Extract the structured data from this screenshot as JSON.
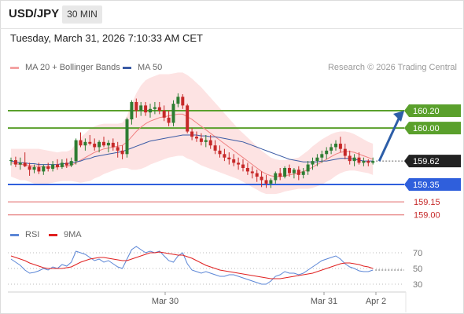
{
  "header": {
    "symbol": "USD/JPY",
    "timeframe": "30 MIN",
    "datetime": "Tuesday, March 31, 2026 7:10:33 AM CET"
  },
  "legend": {
    "ma20_bb": "MA 20 + Bollinger Bands",
    "ma50": "MA 50",
    "copyright": "Research © 2026 Trading Central",
    "rsi": "RSI",
    "ma9": "9MA"
  },
  "colors": {
    "up_candle": "#2d7d32",
    "down_candle": "#c62828",
    "bollinger_fill": "#fde3e3",
    "ma20": "#f08080",
    "ma50": "#3b5ba5",
    "resistance": "#5aa02c",
    "support": "#2f5fdc",
    "target": "#e06666",
    "arrow": "#2d5ea8",
    "rsi": "#5b86d6",
    "rsi_ma": "#e02020"
  },
  "chart_data": [
    {
      "type": "candlestick",
      "title": "",
      "x_tick_labels": [
        "Mar 30",
        "Mar 31",
        "Apr 2"
      ],
      "ylim": [
        158.95,
        160.4
      ],
      "current_price": 159.62,
      "horizontal_levels": [
        {
          "value": 160.2,
          "label": "160.20",
          "kind": "resistance"
        },
        {
          "value": 160.0,
          "label": "160.00",
          "kind": "resistance"
        },
        {
          "value": 159.35,
          "label": "159.35",
          "kind": "support"
        },
        {
          "value": 159.15,
          "label": "159.15",
          "kind": "target"
        },
        {
          "value": 159.0,
          "label": "159.00",
          "kind": "target"
        }
      ],
      "projection": {
        "from": 159.62,
        "to": 160.2
      },
      "candles_ohlc": [
        [
          159.62,
          159.66,
          159.57,
          159.63
        ],
        [
          159.63,
          159.67,
          159.55,
          159.58
        ],
        [
          159.58,
          159.66,
          159.52,
          159.6
        ],
        [
          159.6,
          159.72,
          159.55,
          159.56
        ],
        [
          159.56,
          159.6,
          159.45,
          159.52
        ],
        [
          159.52,
          159.58,
          159.48,
          159.55
        ],
        [
          159.55,
          159.6,
          159.47,
          159.5
        ],
        [
          159.5,
          159.58,
          159.46,
          159.56
        ],
        [
          159.56,
          159.6,
          159.5,
          159.53
        ],
        [
          159.53,
          159.62,
          159.5,
          159.58
        ],
        [
          159.58,
          159.64,
          159.52,
          159.55
        ],
        [
          159.55,
          159.64,
          159.53,
          159.6
        ],
        [
          159.6,
          159.65,
          159.54,
          159.57
        ],
        [
          159.57,
          159.66,
          159.55,
          159.62
        ],
        [
          159.62,
          159.88,
          159.58,
          159.86
        ],
        [
          159.86,
          159.95,
          159.78,
          159.8
        ],
        [
          159.8,
          159.88,
          159.74,
          159.84
        ],
        [
          159.84,
          159.92,
          159.8,
          159.82
        ],
        [
          159.82,
          159.88,
          159.74,
          159.78
        ],
        [
          159.78,
          159.86,
          159.72,
          159.84
        ],
        [
          159.84,
          159.9,
          159.78,
          159.8
        ],
        [
          159.8,
          159.86,
          159.72,
          159.83
        ],
        [
          159.83,
          159.88,
          159.74,
          159.78
        ],
        [
          159.78,
          159.84,
          159.66,
          159.74
        ],
        [
          159.74,
          159.8,
          159.64,
          159.7
        ],
        [
          159.7,
          160.12,
          159.66,
          160.1
        ],
        [
          160.1,
          160.32,
          160.04,
          160.3
        ],
        [
          160.3,
          160.34,
          160.12,
          160.2
        ],
        [
          160.2,
          160.3,
          160.14,
          160.26
        ],
        [
          160.26,
          160.3,
          160.14,
          160.18
        ],
        [
          160.18,
          160.28,
          160.12,
          160.22
        ],
        [
          160.22,
          160.3,
          160.16,
          160.24
        ],
        [
          160.24,
          160.3,
          160.16,
          160.2
        ],
        [
          160.2,
          160.26,
          160.08,
          160.12
        ],
        [
          160.12,
          160.2,
          160.02,
          160.06
        ],
        [
          160.06,
          160.32,
          160.02,
          160.28
        ],
        [
          160.28,
          160.4,
          160.24,
          160.36
        ],
        [
          160.36,
          160.39,
          160.22,
          160.26
        ],
        [
          160.26,
          160.28,
          159.94,
          159.96
        ],
        [
          159.96,
          160.0,
          159.86,
          159.9
        ],
        [
          159.9,
          159.96,
          159.84,
          159.88
        ],
        [
          159.88,
          159.94,
          159.8,
          159.84
        ],
        [
          159.84,
          159.92,
          159.78,
          159.86
        ],
        [
          159.86,
          159.92,
          159.76,
          159.8
        ],
        [
          159.8,
          159.86,
          159.7,
          159.74
        ],
        [
          159.74,
          159.8,
          159.66,
          159.7
        ],
        [
          159.7,
          159.76,
          159.62,
          159.66
        ],
        [
          159.66,
          159.72,
          159.58,
          159.64
        ],
        [
          159.64,
          159.7,
          159.56,
          159.6
        ],
        [
          159.6,
          159.66,
          159.52,
          159.58
        ],
        [
          159.58,
          159.64,
          159.5,
          159.54
        ],
        [
          159.54,
          159.6,
          159.46,
          159.5
        ],
        [
          159.5,
          159.56,
          159.42,
          159.48
        ],
        [
          159.48,
          159.52,
          159.38,
          159.44
        ],
        [
          159.44,
          159.5,
          159.32,
          159.4
        ],
        [
          159.4,
          159.46,
          159.31,
          159.36
        ],
        [
          159.36,
          159.42,
          159.31,
          159.4
        ],
        [
          159.4,
          159.5,
          159.36,
          159.48
        ],
        [
          159.48,
          159.54,
          159.4,
          159.44
        ],
        [
          159.44,
          159.56,
          159.42,
          159.54
        ],
        [
          159.54,
          159.58,
          159.44,
          159.48
        ],
        [
          159.48,
          159.54,
          159.42,
          159.52
        ],
        [
          159.52,
          159.56,
          159.4,
          159.46
        ],
        [
          159.46,
          159.54,
          159.42,
          159.5
        ],
        [
          159.5,
          159.62,
          159.46,
          159.58
        ],
        [
          159.58,
          159.66,
          159.52,
          159.62
        ],
        [
          159.62,
          159.7,
          159.56,
          159.66
        ],
        [
          159.66,
          159.74,
          159.6,
          159.7
        ],
        [
          159.7,
          159.78,
          159.64,
          159.74
        ],
        [
          159.74,
          159.82,
          159.7,
          159.78
        ],
        [
          159.78,
          159.86,
          159.74,
          159.82
        ],
        [
          159.82,
          159.9,
          159.72,
          159.76
        ],
        [
          159.76,
          159.82,
          159.64,
          159.68
        ],
        [
          159.68,
          159.74,
          159.58,
          159.62
        ],
        [
          159.62,
          159.7,
          159.56,
          159.66
        ],
        [
          159.66,
          159.72,
          159.58,
          159.6
        ],
        [
          159.6,
          159.66,
          159.56,
          159.62
        ],
        [
          159.62,
          159.64,
          159.56,
          159.6
        ],
        [
          159.6,
          159.66,
          159.58,
          159.62
        ]
      ],
      "ma50_values": [
        159.62,
        159.61,
        159.6,
        159.6,
        159.59,
        159.59,
        159.58,
        159.58,
        159.58,
        159.58,
        159.58,
        159.59,
        159.59,
        159.6,
        159.61,
        159.62,
        159.64,
        159.65,
        159.67,
        159.68,
        159.69,
        159.7,
        159.71,
        159.72,
        159.73,
        159.75,
        159.77,
        159.79,
        159.81,
        159.83,
        159.85,
        159.86,
        159.87,
        159.88,
        159.89,
        159.9,
        159.91,
        159.92,
        159.92,
        159.92,
        159.92,
        159.91,
        159.91,
        159.9,
        159.9,
        159.89,
        159.88,
        159.87,
        159.86,
        159.85,
        159.84,
        159.82,
        159.8,
        159.78,
        159.76,
        159.74,
        159.72,
        159.7,
        159.68,
        159.66,
        159.64,
        159.63,
        159.62,
        159.61,
        159.61,
        159.61,
        159.61,
        159.62,
        159.62,
        159.63,
        159.64,
        159.65,
        159.65,
        159.65,
        159.64,
        159.63,
        159.62,
        159.62,
        159.62
      ],
      "ma20_values": [
        159.6,
        159.59,
        159.58,
        159.58,
        159.57,
        159.56,
        159.56,
        159.55,
        159.55,
        159.55,
        159.55,
        159.56,
        159.56,
        159.57,
        159.6,
        159.63,
        159.66,
        159.69,
        159.72,
        159.74,
        159.76,
        159.77,
        159.78,
        159.79,
        159.8,
        159.84,
        159.9,
        159.96,
        160.01,
        160.05,
        160.08,
        160.1,
        160.12,
        160.13,
        160.14,
        160.15,
        160.16,
        160.16,
        160.13,
        160.1,
        160.06,
        160.02,
        159.98,
        159.94,
        159.9,
        159.86,
        159.82,
        159.78,
        159.74,
        159.7,
        159.66,
        159.62,
        159.58,
        159.54,
        159.5,
        159.47,
        159.45,
        159.44,
        159.44,
        159.45,
        159.46,
        159.47,
        159.48,
        159.5,
        159.52,
        159.55,
        159.58,
        159.61,
        159.64,
        159.67,
        159.7,
        159.72,
        159.73,
        159.73,
        159.72,
        159.7,
        159.68,
        159.66,
        159.64
      ],
      "bollinger_band_width": [
        0.16,
        0.17,
        0.18,
        0.18,
        0.19,
        0.2,
        0.2,
        0.2,
        0.19,
        0.18,
        0.17,
        0.17,
        0.17,
        0.18,
        0.22,
        0.26,
        0.28,
        0.3,
        0.3,
        0.3,
        0.29,
        0.28,
        0.27,
        0.26,
        0.26,
        0.3,
        0.38,
        0.44,
        0.48,
        0.5,
        0.5,
        0.5,
        0.5,
        0.49,
        0.48,
        0.48,
        0.48,
        0.48,
        0.48,
        0.47,
        0.46,
        0.45,
        0.43,
        0.41,
        0.39,
        0.37,
        0.35,
        0.33,
        0.31,
        0.29,
        0.28,
        0.27,
        0.26,
        0.25,
        0.24,
        0.23,
        0.21,
        0.2,
        0.19,
        0.18,
        0.18,
        0.18,
        0.18,
        0.2,
        0.22,
        0.24,
        0.25,
        0.26,
        0.26,
        0.26,
        0.25,
        0.24,
        0.23,
        0.22,
        0.21,
        0.2,
        0.19,
        0.18,
        0.18
      ]
    },
    {
      "type": "line",
      "title": "",
      "ylim": [
        22,
        80
      ],
      "y_ticks": [
        70,
        50,
        30
      ],
      "series": [
        {
          "name": "RSI",
          "values": [
            62,
            58,
            54,
            48,
            44,
            45,
            47,
            50,
            48,
            52,
            50,
            55,
            53,
            58,
            72,
            70,
            68,
            64,
            60,
            62,
            58,
            60,
            56,
            52,
            50,
            62,
            74,
            78,
            74,
            70,
            72,
            70,
            72,
            66,
            60,
            58,
            66,
            70,
            56,
            48,
            46,
            44,
            46,
            44,
            42,
            40,
            40,
            42,
            42,
            40,
            38,
            36,
            34,
            32,
            30,
            30,
            34,
            40,
            42,
            46,
            44,
            44,
            42,
            44,
            48,
            52,
            56,
            60,
            62,
            64,
            66,
            62,
            56,
            52,
            50,
            47,
            46,
            46,
            48
          ]
        },
        {
          "name": "9MA",
          "values": [
            66,
            64,
            62,
            60,
            57,
            55,
            53,
            51,
            50,
            50,
            50,
            50,
            51,
            52,
            55,
            58,
            60,
            62,
            63,
            64,
            64,
            63,
            62,
            61,
            60,
            60,
            62,
            64,
            66,
            68,
            70,
            70,
            71,
            70,
            69,
            68,
            67,
            67,
            65,
            63,
            60,
            57,
            54,
            52,
            50,
            48,
            47,
            46,
            45,
            44,
            43,
            42,
            41,
            40,
            39,
            38,
            37,
            37,
            37,
            38,
            39,
            40,
            41,
            42,
            43,
            44,
            46,
            48,
            50,
            52,
            54,
            56,
            57,
            57,
            56,
            55,
            53,
            52,
            50
          ]
        }
      ],
      "reference_levels": [
        70,
        50,
        30
      ]
    }
  ]
}
